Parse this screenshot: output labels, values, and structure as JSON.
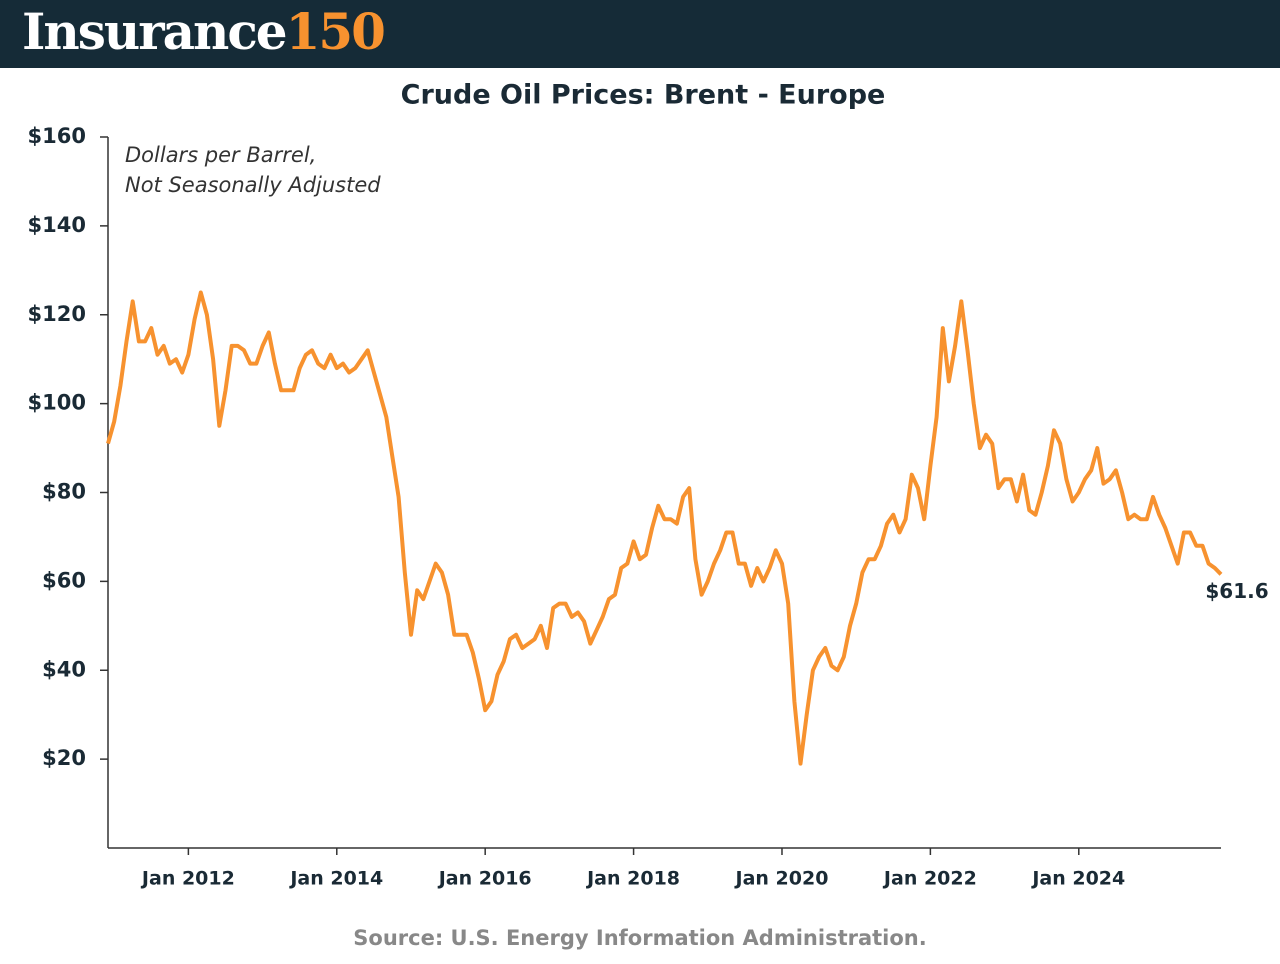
{
  "brand": {
    "name": "Insurance",
    "number": "150"
  },
  "chart_data": {
    "type": "line",
    "title": "Crude Oil Prices: Brent - Europe",
    "subtitle": [
      "Dollars per Barrel,",
      "Not Seasonally Adjusted"
    ],
    "source": "Source: U.S. Energy Information Administration.",
    "xlim": [
      "2010-12",
      "2025-12"
    ],
    "xticks": [
      {
        "value": "2012-01",
        "label": "Jan 2012"
      },
      {
        "value": "2014-01",
        "label": "Jan 2014"
      },
      {
        "value": "2016-01",
        "label": "Jan 2016"
      },
      {
        "value": "2018-01",
        "label": "Jan 2018"
      },
      {
        "value": "2020-01",
        "label": "Jan 2020"
      },
      {
        "value": "2022-01",
        "label": "Jan 2022"
      },
      {
        "value": "2024-01",
        "label": "Jan 2024"
      }
    ],
    "ylim": [
      0,
      160
    ],
    "yticks": [
      {
        "value": 20,
        "label": "$20"
      },
      {
        "value": 40,
        "label": "$40"
      },
      {
        "value": 60,
        "label": "$60"
      },
      {
        "value": 80,
        "label": "$80"
      },
      {
        "value": 100,
        "label": "$100"
      },
      {
        "value": 120,
        "label": "$120"
      },
      {
        "value": 140,
        "label": "$140"
      },
      {
        "value": 160,
        "label": "$160"
      }
    ],
    "grid": false,
    "x": [
      "2010-12",
      "2011-01",
      "2011-02",
      "2011-03",
      "2011-04",
      "2011-05",
      "2011-06",
      "2011-07",
      "2011-08",
      "2011-09",
      "2011-10",
      "2011-11",
      "2011-12",
      "2012-01",
      "2012-02",
      "2012-03",
      "2012-04",
      "2012-05",
      "2012-06",
      "2012-07",
      "2012-08",
      "2012-09",
      "2012-10",
      "2012-11",
      "2012-12",
      "2013-01",
      "2013-02",
      "2013-03",
      "2013-04",
      "2013-05",
      "2013-06",
      "2013-07",
      "2013-08",
      "2013-09",
      "2013-10",
      "2013-11",
      "2013-12",
      "2014-01",
      "2014-02",
      "2014-03",
      "2014-04",
      "2014-05",
      "2014-06",
      "2014-07",
      "2014-08",
      "2014-09",
      "2014-10",
      "2014-11",
      "2014-12",
      "2015-01",
      "2015-02",
      "2015-03",
      "2015-04",
      "2015-05",
      "2015-06",
      "2015-07",
      "2015-08",
      "2015-09",
      "2015-10",
      "2015-11",
      "2015-12",
      "2016-01",
      "2016-02",
      "2016-03",
      "2016-04",
      "2016-05",
      "2016-06",
      "2016-07",
      "2016-08",
      "2016-09",
      "2016-10",
      "2016-11",
      "2016-12",
      "2017-01",
      "2017-02",
      "2017-03",
      "2017-04",
      "2017-05",
      "2017-06",
      "2017-07",
      "2017-08",
      "2017-09",
      "2017-10",
      "2017-11",
      "2017-12",
      "2018-01",
      "2018-02",
      "2018-03",
      "2018-04",
      "2018-05",
      "2018-06",
      "2018-07",
      "2018-08",
      "2018-09",
      "2018-10",
      "2018-11",
      "2018-12",
      "2019-01",
      "2019-02",
      "2019-03",
      "2019-04",
      "2019-05",
      "2019-06",
      "2019-07",
      "2019-08",
      "2019-09",
      "2019-10",
      "2019-11",
      "2019-12",
      "2020-01",
      "2020-02",
      "2020-03",
      "2020-04",
      "2020-05",
      "2020-06",
      "2020-07",
      "2020-08",
      "2020-09",
      "2020-10",
      "2020-11",
      "2020-12",
      "2021-01",
      "2021-02",
      "2021-03",
      "2021-04",
      "2021-05",
      "2021-06",
      "2021-07",
      "2021-08",
      "2021-09",
      "2021-10",
      "2021-11",
      "2021-12",
      "2022-01",
      "2022-02",
      "2022-03",
      "2022-04",
      "2022-05",
      "2022-06",
      "2022-07",
      "2022-08",
      "2022-09",
      "2022-10",
      "2022-11",
      "2022-12",
      "2023-01",
      "2023-02",
      "2023-03",
      "2023-04",
      "2023-05",
      "2023-06",
      "2023-07",
      "2023-08",
      "2023-09",
      "2023-10",
      "2023-11",
      "2023-12",
      "2024-01",
      "2024-02",
      "2024-03",
      "2024-04",
      "2024-05",
      "2024-06",
      "2024-07",
      "2024-08",
      "2024-09",
      "2024-10",
      "2024-11",
      "2024-12",
      "2025-01",
      "2025-02",
      "2025-03",
      "2025-04",
      "2025-05",
      "2025-06",
      "2025-07",
      "2025-08",
      "2025-09",
      "2025-10",
      "2025-11",
      "2025-12"
    ],
    "series": [
      {
        "name": "Brent",
        "color": "#f7922f",
        "values": [
          91,
          96,
          104,
          114,
          123,
          114,
          114,
          117,
          111,
          113,
          109,
          110,
          107,
          111,
          119,
          125,
          120,
          110,
          95,
          103,
          113,
          113,
          112,
          109,
          109,
          113,
          116,
          109,
          103,
          103,
          103,
          108,
          111,
          112,
          109,
          108,
          111,
          108,
          109,
          107,
          108,
          110,
          112,
          107,
          102,
          97,
          88,
          79,
          62,
          48,
          58,
          56,
          60,
          64,
          62,
          57,
          48,
          48,
          48,
          44,
          38,
          31,
          33,
          39,
          42,
          47,
          48,
          45,
          46,
          47,
          50,
          45,
          54,
          55,
          55,
          52,
          53,
          51,
          46,
          49,
          52,
          56,
          57,
          63,
          64,
          69,
          65,
          66,
          72,
          77,
          74,
          74,
          73,
          79,
          81,
          65,
          57,
          60,
          64,
          67,
          71,
          71,
          64,
          64,
          59,
          63,
          60,
          63,
          67,
          64,
          55,
          33,
          19,
          30,
          40,
          43,
          45,
          41,
          40,
          43,
          50,
          55,
          62,
          65,
          65,
          68,
          73,
          75,
          71,
          74,
          84,
          81,
          74,
          86,
          97,
          117,
          105,
          113,
          123,
          112,
          100,
          90,
          93,
          91,
          81,
          83,
          83,
          78,
          84,
          76,
          75,
          80,
          86,
          94,
          91,
          83,
          78,
          80,
          83,
          85,
          90,
          82,
          83,
          85,
          80,
          74,
          75,
          74,
          74,
          79,
          75,
          72,
          68,
          64,
          71,
          71,
          68,
          68,
          64,
          63,
          61.6
        ],
        "value_labels": [
          null,
          null,
          null,
          null,
          null,
          null,
          null,
          null,
          null,
          null,
          null,
          null,
          null,
          null,
          null,
          null,
          null,
          null,
          null,
          null,
          null,
          null,
          null,
          null,
          null,
          null,
          null,
          null,
          null,
          null,
          null,
          null,
          null,
          null,
          null,
          null,
          null,
          null,
          null,
          null,
          null,
          null,
          null,
          null,
          null,
          null,
          null,
          null,
          null,
          null,
          null,
          null,
          null,
          null,
          null,
          null,
          null,
          null,
          null,
          null,
          null,
          null,
          null,
          null,
          null,
          null,
          null,
          null,
          null,
          null,
          null,
          null,
          null,
          null,
          null,
          null,
          null,
          null,
          null,
          null,
          null,
          null,
          null,
          null,
          null,
          null,
          null,
          null,
          null,
          null,
          null,
          null,
          null,
          null,
          null,
          null,
          null,
          null,
          null,
          null,
          null,
          null,
          null,
          null,
          null,
          null,
          null,
          null,
          null,
          null,
          null,
          null,
          null,
          null,
          null,
          null,
          null,
          null,
          null,
          null,
          null,
          null,
          null,
          null,
          null,
          null,
          null,
          null,
          null,
          null,
          null,
          null,
          null,
          null,
          null,
          null,
          null,
          null,
          null,
          null,
          null,
          null,
          null,
          null,
          null,
          null,
          null,
          null,
          null,
          null,
          null,
          null,
          null,
          null,
          null,
          null,
          null,
          null,
          null,
          null,
          null,
          null,
          null,
          null,
          null,
          null,
          null,
          null,
          null,
          null,
          null,
          null,
          null,
          null,
          null,
          null,
          null,
          null,
          null,
          null,
          "$61.6"
        ]
      }
    ]
  }
}
